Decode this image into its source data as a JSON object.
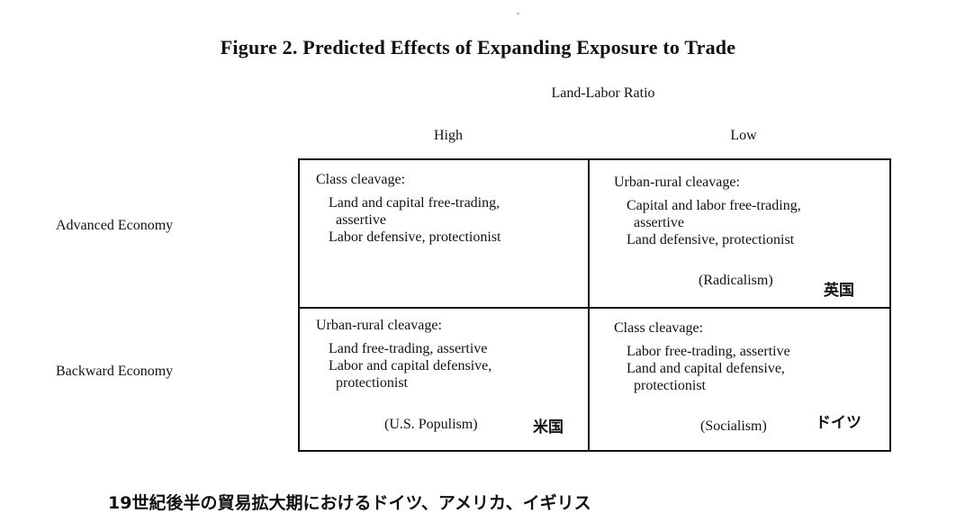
{
  "title": "Figure 2. Predicted Effects of Expanding Exposure to Trade",
  "axis_title": "Land-Labor Ratio",
  "columns": {
    "high": "High",
    "low": "Low"
  },
  "rows": {
    "advanced": "Advanced Economy",
    "backward": "Backward Economy"
  },
  "cells": {
    "advanced_high": {
      "heading": "Class cleavage:",
      "lines": [
        "Land and capital free-trading,",
        "assertive",
        "Labor defensive, protectionist"
      ]
    },
    "advanced_low": {
      "heading": "Urban-rural cleavage:",
      "lines": [
        "Capital and labor free-trading,",
        "assertive",
        "Land defensive, protectionist"
      ],
      "parenthetical": "(Radicalism)",
      "annotation": "英国"
    },
    "backward_high": {
      "heading": "Urban-rural cleavage:",
      "lines": [
        "Land free-trading, assertive",
        "Labor and capital defensive,",
        "protectionist"
      ],
      "parenthetical": "(U.S. Populism)",
      "annotation": "米国"
    },
    "backward_low": {
      "heading": "Class cleavage:",
      "lines": [
        "Labor free-trading, assertive",
        "Land and capital defensive,",
        "protectionist"
      ],
      "parenthetical": "(Socialism)",
      "annotation": "ドイツ"
    }
  },
  "caption": "19世紀後半の貿易拡大期におけるドイツ、アメリカ、イギリス"
}
